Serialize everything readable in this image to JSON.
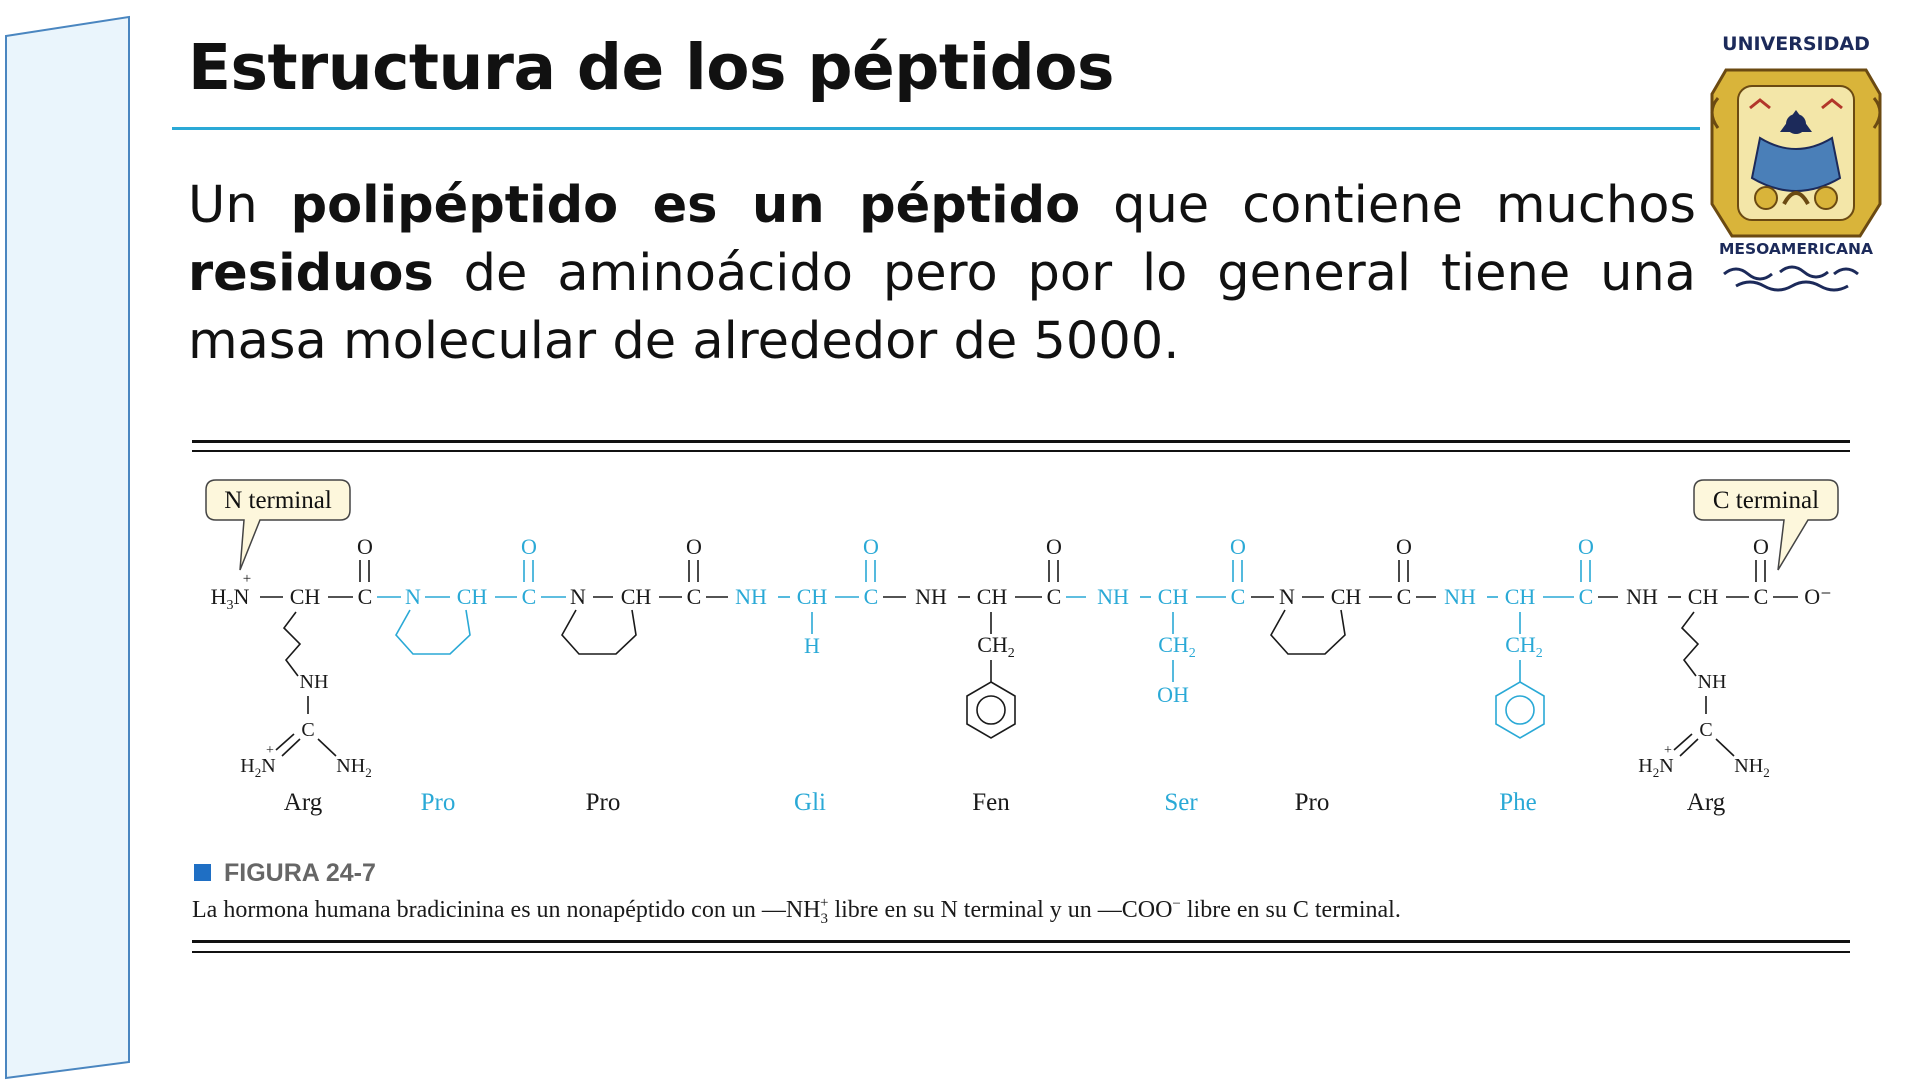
{
  "slide": {
    "title": "Estructura de los péptidos",
    "body": {
      "t1": "Un ",
      "b1": "polipéptido es un péptido",
      "t2": " que contiene muchos ",
      "b2": "residuos",
      "t3": " de aminoácido pero por lo general tiene una masa molecular de alrededor de 5000."
    }
  },
  "logo": {
    "top_text": "UNIVERSIDAD",
    "bottom_text": "MESOAMERICANA"
  },
  "figure": {
    "n_terminal_label": "N terminal",
    "c_terminal_label": "C terminal",
    "figure_number": "FIGURA 24-7",
    "caption": {
      "part1": "La hormona humana bradicinina es un nonapéptido con un —NH",
      "sub": "3",
      "sup": "+",
      "part2": " libre en su N terminal y un —COO",
      "sup2": "−",
      "part3": " libre en su C terminal."
    },
    "residues": [
      {
        "name": "Arg",
        "color": "#1a1a1a"
      },
      {
        "name": "Pro",
        "color": "#2aa9d6"
      },
      {
        "name": "Pro",
        "color": "#1a1a1a"
      },
      {
        "name": "Gli",
        "color": "#2aa9d6"
      },
      {
        "name": "Fen",
        "color": "#1a1a1a"
      },
      {
        "name": "Ser",
        "color": "#2aa9d6"
      },
      {
        "name": "Pro",
        "color": "#1a1a1a"
      },
      {
        "name": "Phe",
        "color": "#2aa9d6"
      },
      {
        "name": "Arg",
        "color": "#1a1a1a"
      }
    ],
    "chem": {
      "h3n": "H",
      "h3n_sub": "3",
      "h3n_n": "N",
      "plus": "+",
      "ch": "CH",
      "c": "C",
      "n": "N",
      "nh": "NH",
      "o": "O",
      "o_minus": "O⁻",
      "h": "H",
      "ch2": "CH",
      "sub2": "2",
      "oh": "OH",
      "h2n": "H",
      "h2n_sub": "2",
      "h2n_n": "N",
      "nh2": "NH",
      "nh2_sub": "2"
    }
  },
  "colors": {
    "accent": "#2aa9d6",
    "rule": "#2aa9d6",
    "figure_square": "#1f6fc4",
    "panel_fill": "#eaf5fc",
    "panel_stroke": "#4a86c0",
    "bubble_fill": "#fdf7dc"
  }
}
